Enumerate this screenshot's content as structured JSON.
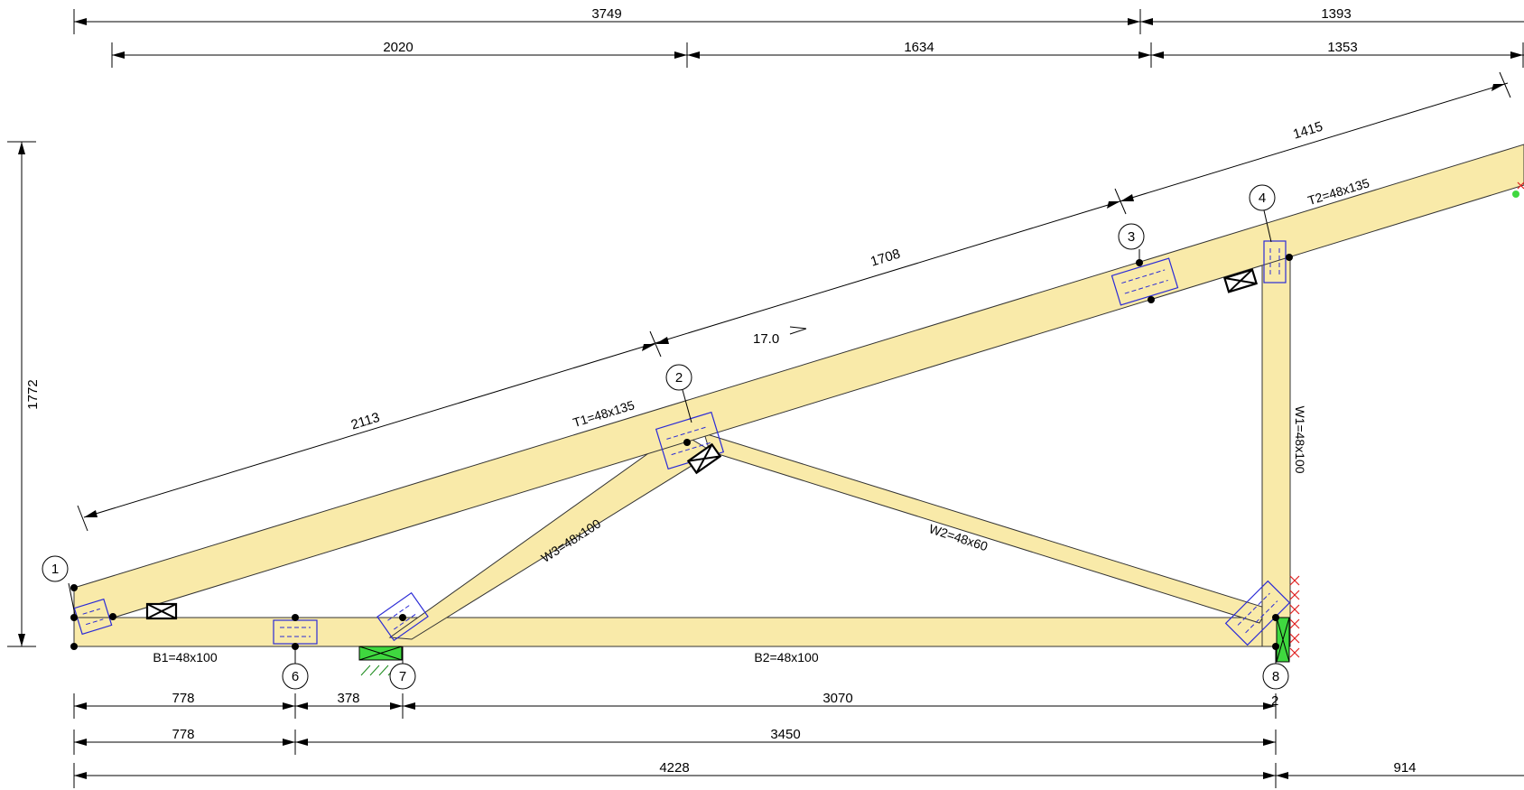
{
  "colors": {
    "member_fill": "#f9eaa9",
    "plate": "#2b2bd6",
    "support": "#3fd83f",
    "support_x": "#e02020"
  },
  "dimensions": {
    "top_3749": "3749",
    "top_1393": "1393",
    "top_2020": "2020",
    "top_1634": "1634",
    "top_1353": "1353",
    "left_1772": "1772",
    "slope_2113": "2113",
    "slope_1708": "1708",
    "slope_1415": "1415",
    "bottom_778a": "778",
    "bottom_378": "378",
    "bottom_3070": "3070",
    "bottom_778b": "778",
    "bottom_3450": "3450",
    "bottom_4228": "4228",
    "bottom_914": "914"
  },
  "pitch": "17.0",
  "members": {
    "T1": "T1=48x135",
    "T2": "T2=48x135",
    "W1": "W1=48x100",
    "W2": "W2=48x60",
    "W3": "W3=48x100",
    "B1": "B1=48x100",
    "B2": "B2=48x100"
  },
  "nodes": [
    "1",
    "2",
    "3",
    "4",
    "6",
    "7",
    "8"
  ],
  "support_label": "2"
}
